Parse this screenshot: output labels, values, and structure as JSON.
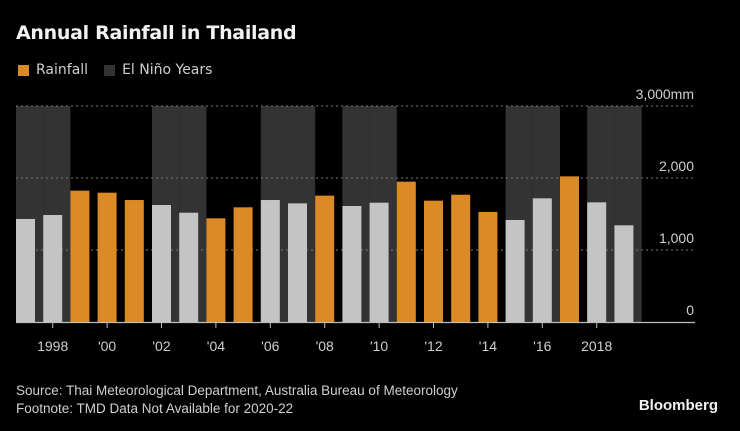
{
  "chart_data": {
    "type": "bar",
    "title": "Annual Rainfall in Thailand",
    "legend": [
      {
        "label": "Rainfall",
        "color": "#DC8A26"
      },
      {
        "label": "El Niño Years",
        "color": "#333333"
      }
    ],
    "legend_placement": "top-left",
    "xlabel": "",
    "ylabel": "",
    "y_unit": "mm",
    "ylim": [
      0,
      3000
    ],
    "yticks": [
      0,
      1000,
      2000,
      3000
    ],
    "ytick_labels": [
      "0",
      "1,000",
      "2,000",
      "3,000mm"
    ],
    "grid": true,
    "categories": [
      1997,
      1998,
      1999,
      2000,
      2001,
      2002,
      2003,
      2004,
      2005,
      2006,
      2007,
      2008,
      2009,
      2010,
      2011,
      2012,
      2013,
      2014,
      2015,
      2016,
      2017,
      2018,
      2019
    ],
    "xtick_years": [
      1998,
      2000,
      2002,
      2004,
      2006,
      2008,
      2010,
      2012,
      2014,
      2016,
      2018
    ],
    "xtick_labels": [
      "1998",
      "'00",
      "'02",
      "'04",
      "'06",
      "'08",
      "'10",
      "'12",
      "'14",
      "'16",
      "2018"
    ],
    "series": [
      {
        "name": "Rainfall",
        "values": [
          1431,
          1486,
          1824,
          1796,
          1694,
          1625,
          1518,
          1440,
          1593,
          1694,
          1648,
          1755,
          1611,
          1657,
          1949,
          1685,
          1768,
          1528,
          1417,
          1718,
          2023,
          1662,
          1343
        ]
      }
    ],
    "el_nino_years": [
      1997,
      1998,
      2002,
      2003,
      2006,
      2007,
      2009,
      2010,
      2015,
      2016,
      2018,
      2019
    ],
    "colors": {
      "rainfall": "#DC8A26",
      "el_nino_bar": "#C4C4C4",
      "el_nino_band": "#333333",
      "grid": "#7a7a7a",
      "axis": "#bdbdbd"
    }
  },
  "footer": {
    "source": "Source: Thai Meteorological Department, Australia Bureau of Meteorology",
    "footnote": "Footnote: TMD Data Not Available for 2020-22"
  },
  "brand": "Bloomberg"
}
